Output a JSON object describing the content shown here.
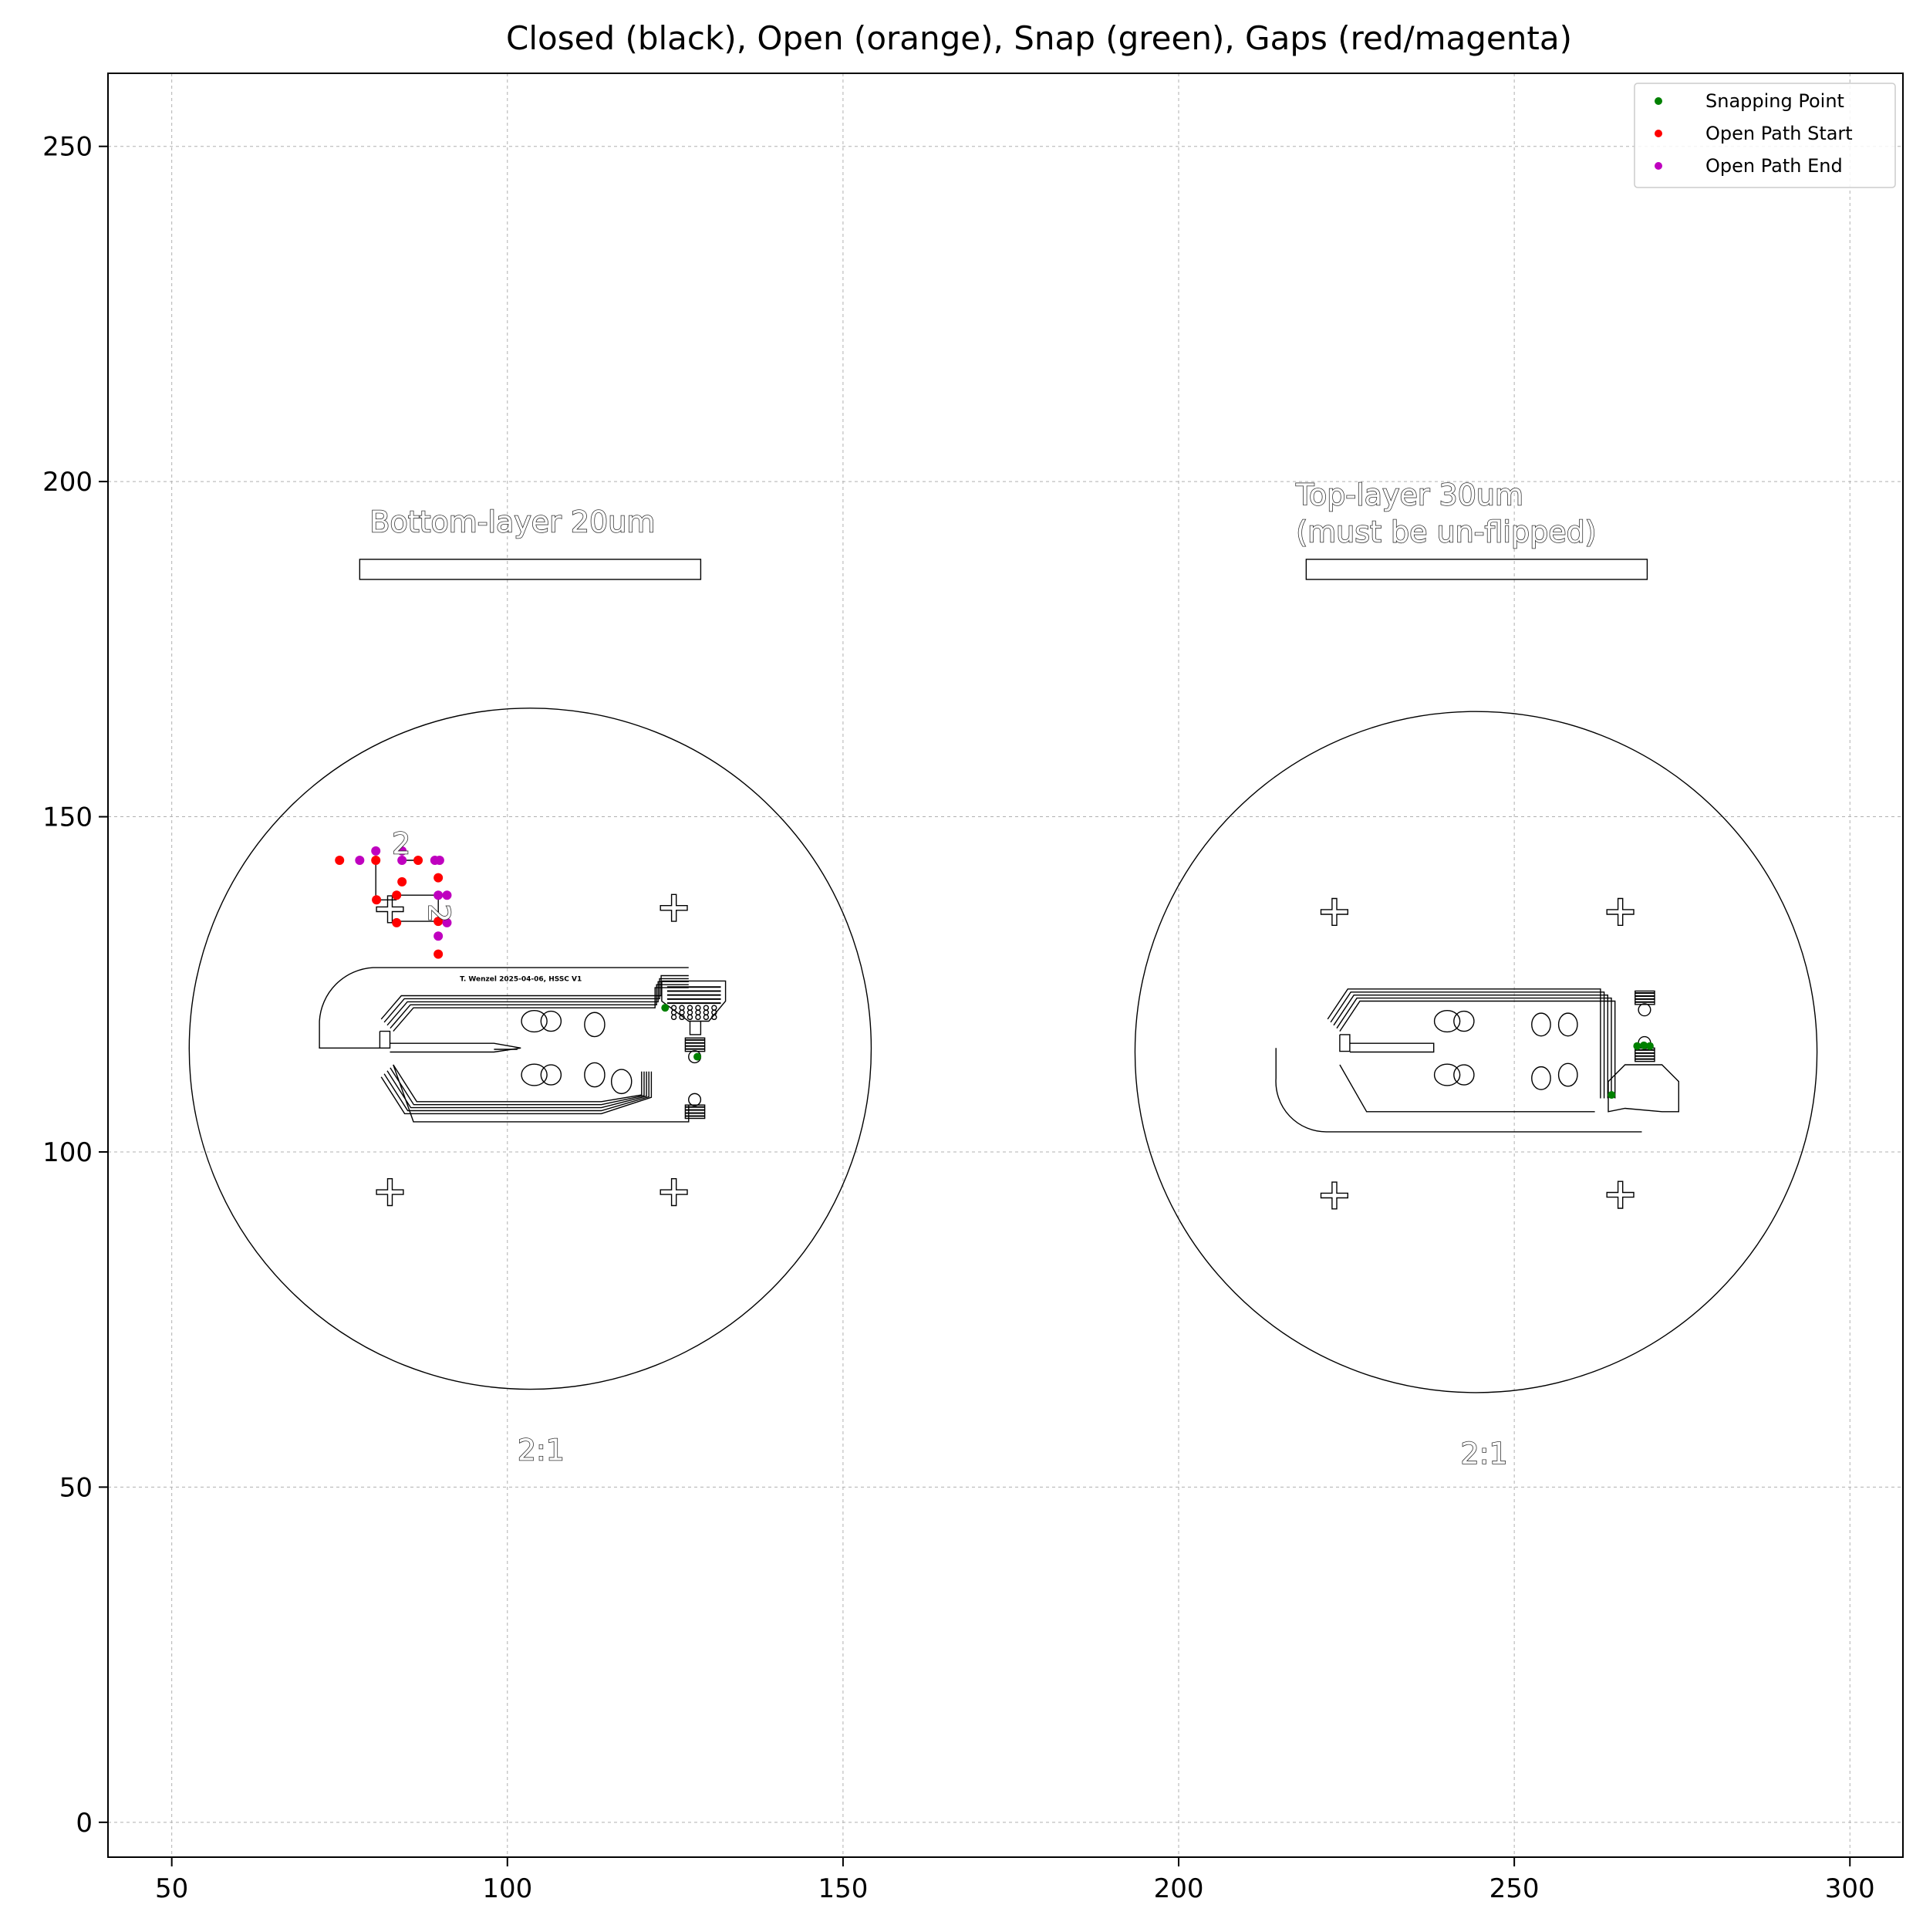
{
  "chart_data": {
    "type": "scatter",
    "title": "Closed (black), Open (orange), Snap (green), Gaps (red/magenta)",
    "xlabel": "",
    "ylabel": "",
    "xlim": [
      40.5,
      307.9
    ],
    "ylim": [
      -5.2,
      260.9
    ],
    "xticks": [
      50,
      100,
      150,
      200,
      250,
      300
    ],
    "yticks": [
      0,
      50,
      100,
      150,
      200,
      250
    ],
    "grid": true,
    "legend_position": "top-right",
    "legend": [
      {
        "label": "Snapping Point",
        "color": "#008000"
      },
      {
        "label": "Open Path Start",
        "color": "#ff0000"
      },
      {
        "label": "Open Path End",
        "color": "#bf00bf"
      }
    ],
    "annotations": [
      {
        "text": "Bottom-layer 20um",
        "x": 79.5,
        "y": 192.5
      },
      {
        "text": "Top-layer 30um",
        "x": 217.5,
        "y": 196.5
      },
      {
        "text": "(must be un-flipped)",
        "x": 217.5,
        "y": 191.0
      },
      {
        "text": "2:1",
        "x": 101.5,
        "y": 54.0
      },
      {
        "text": "2:1",
        "x": 242.0,
        "y": 53.5
      },
      {
        "text": "2",
        "x": 82.8,
        "y": 144.5
      },
      {
        "text": "2",
        "x": 88.3,
        "y": 137.0
      },
      {
        "text": "T. Wenzel 2025-04-06, HSSC V1",
        "x": 102.0,
        "y": 125.5
      }
    ],
    "circles": [
      {
        "cx": 103.4,
        "cy": 115.4,
        "r": 50.8
      },
      {
        "cx": 244.3,
        "cy": 114.9,
        "r": 50.8
      }
    ],
    "crosses": [
      {
        "x": 82.5,
        "y": 136.2
      },
      {
        "x": 124.8,
        "y": 136.4
      },
      {
        "x": 82.5,
        "y": 94.0
      },
      {
        "x": 124.8,
        "y": 94.0
      },
      {
        "x": 223.2,
        "y": 135.8
      },
      {
        "x": 265.8,
        "y": 135.8
      },
      {
        "x": 223.2,
        "y": 93.5
      },
      {
        "x": 265.8,
        "y": 93.6
      }
    ],
    "rectangles": [
      {
        "x0": 78.0,
        "y0": 185.4,
        "x1": 128.8,
        "y1": 188.4
      },
      {
        "x0": 219.0,
        "y0": 185.4,
        "x1": 269.8,
        "y1": 188.4
      }
    ],
    "snapping_points": [
      {
        "x": 123.5,
        "y": 121.5
      },
      {
        "x": 128.3,
        "y": 114.2
      },
      {
        "x": 264.5,
        "y": 108.5
      },
      {
        "x": 268.3,
        "y": 115.8
      },
      {
        "x": 269.3,
        "y": 115.9
      },
      {
        "x": 270.2,
        "y": 115.8
      }
    ],
    "open_path_start": [
      {
        "x": 75.0,
        "y": 143.5
      },
      {
        "x": 80.4,
        "y": 143.5
      },
      {
        "x": 80.5,
        "y": 137.6
      },
      {
        "x": 83.5,
        "y": 138.3
      },
      {
        "x": 83.5,
        "y": 134.2
      },
      {
        "x": 84.3,
        "y": 140.3
      },
      {
        "x": 86.7,
        "y": 143.5
      },
      {
        "x": 89.7,
        "y": 140.9
      },
      {
        "x": 89.7,
        "y": 134.4
      },
      {
        "x": 89.7,
        "y": 129.5
      }
    ],
    "open_path_end": [
      {
        "x": 78.0,
        "y": 143.5
      },
      {
        "x": 80.4,
        "y": 144.9
      },
      {
        "x": 84.3,
        "y": 144.9
      },
      {
        "x": 84.3,
        "y": 143.5
      },
      {
        "x": 89.2,
        "y": 143.5
      },
      {
        "x": 89.9,
        "y": 143.5
      },
      {
        "x": 89.7,
        "y": 138.3
      },
      {
        "x": 91.0,
        "y": 138.3
      },
      {
        "x": 91.0,
        "y": 134.2
      },
      {
        "x": 89.7,
        "y": 132.2
      }
    ]
  }
}
